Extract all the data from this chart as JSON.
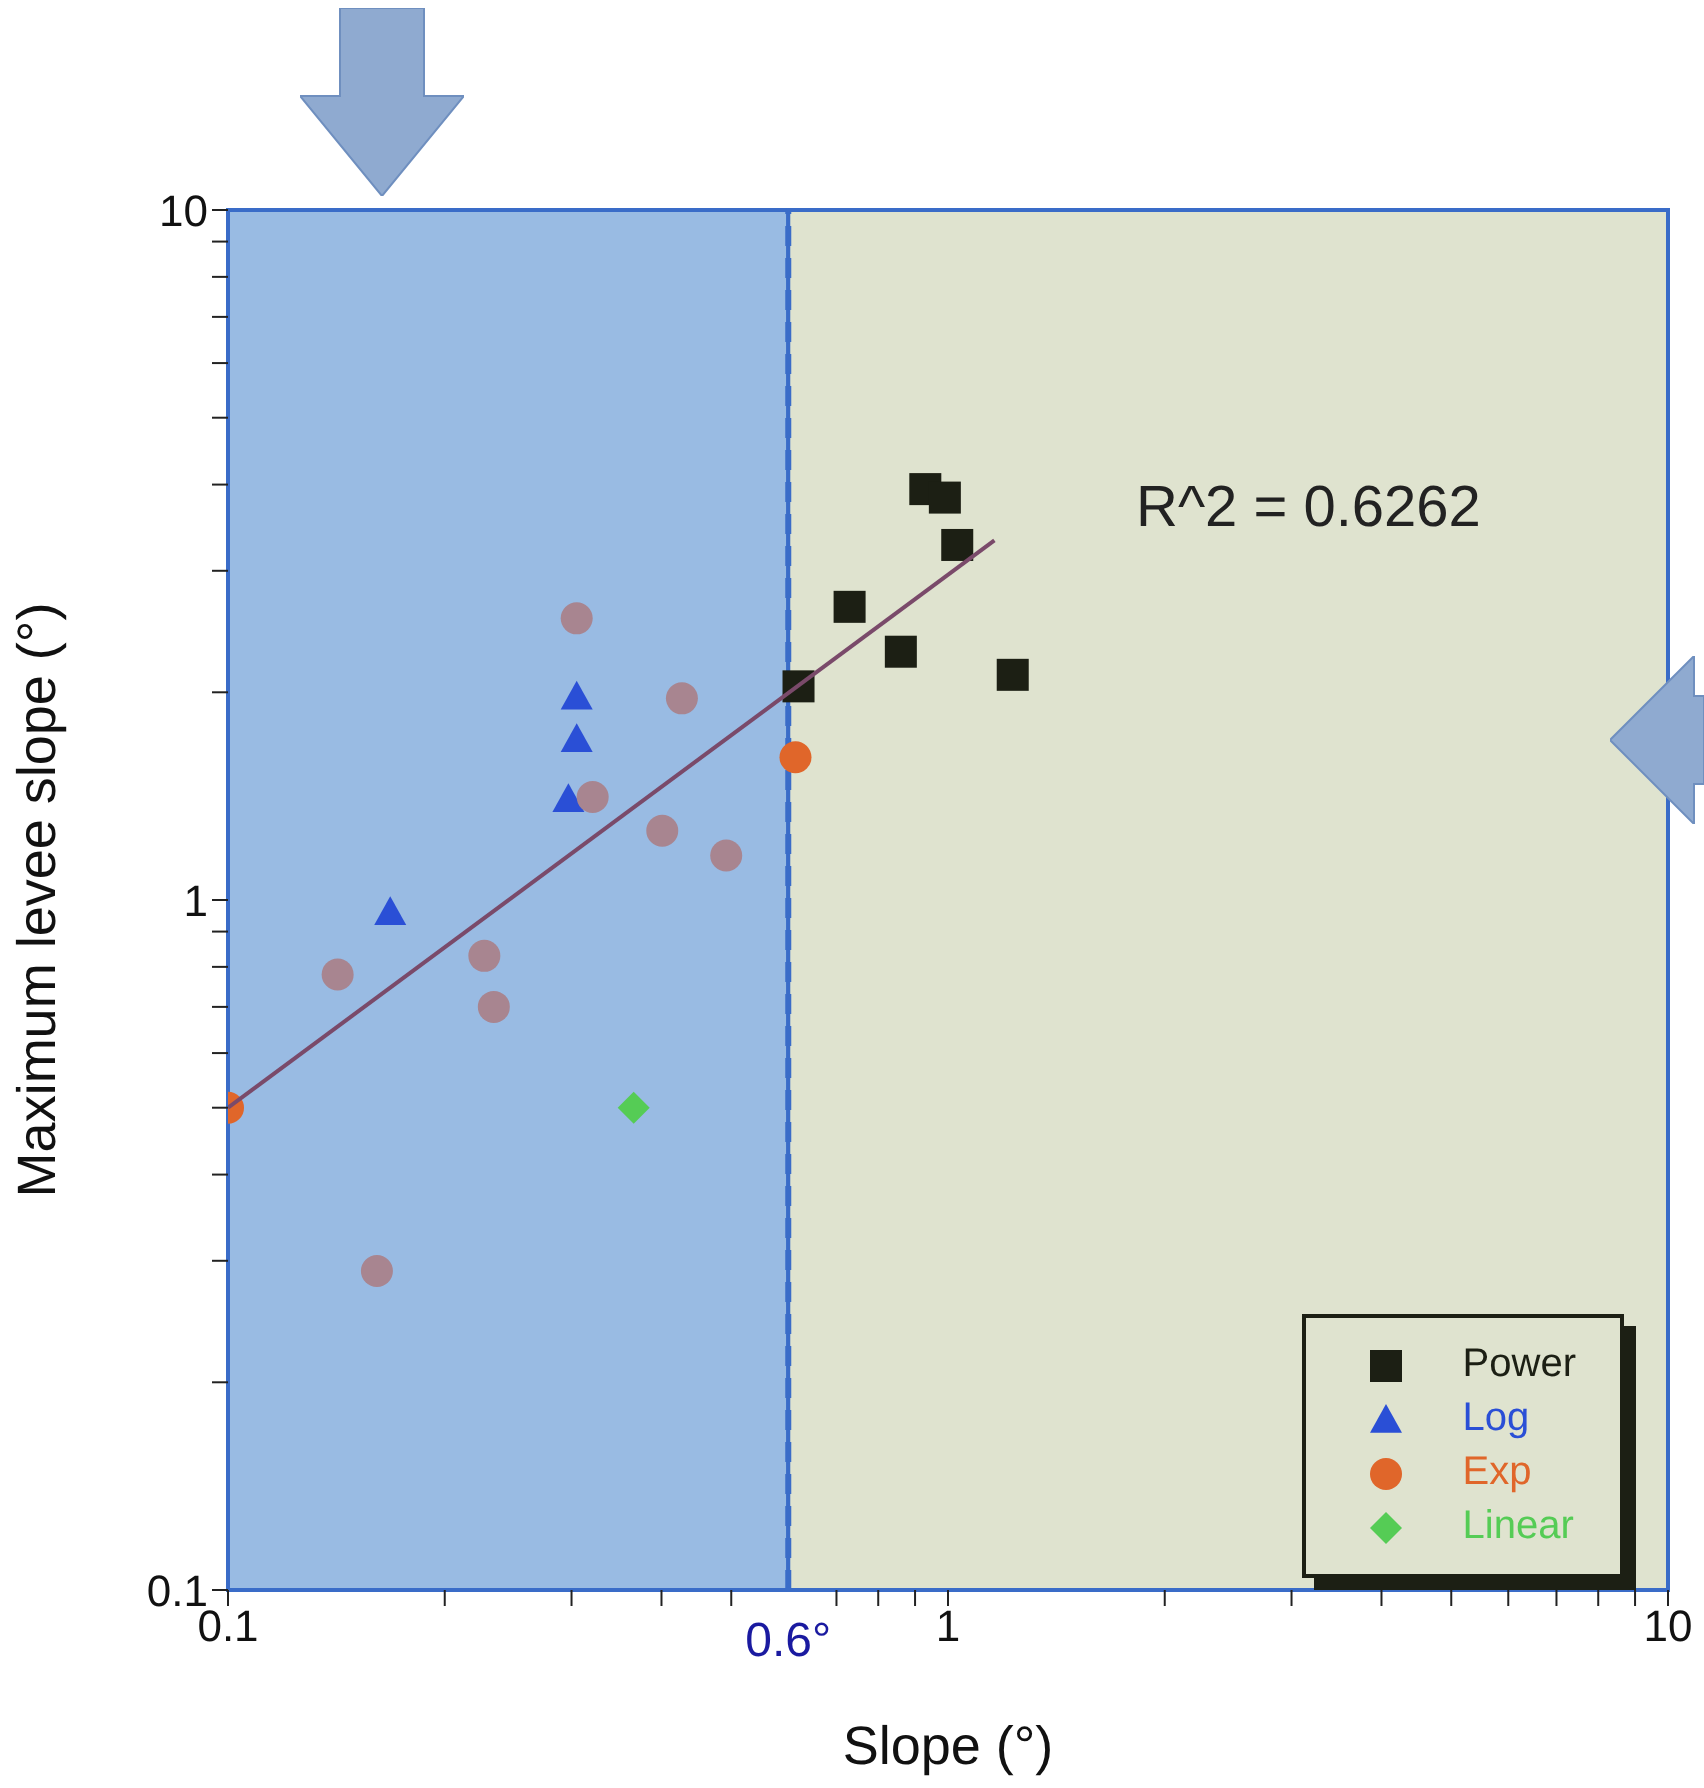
{
  "chart_data": {
    "type": "scatter",
    "xlabel": "Slope (°)",
    "ylabel": "Maximum levee slope (°)",
    "log": "xy",
    "xlim": [
      0.1,
      10
    ],
    "ylim": [
      0.1,
      10
    ],
    "xticks": [
      0.1,
      {
        "value": 0.2,
        "label": null
      },
      {
        "value": 0.3,
        "label": null
      },
      {
        "value": 0.4,
        "label": null
      },
      {
        "value": 0.5,
        "label": null
      },
      {
        "value": 0.7,
        "label": null
      },
      {
        "value": 0.8,
        "label": null
      },
      {
        "value": 0.9,
        "label": null
      },
      1,
      {
        "value": 2,
        "label": null
      },
      {
        "value": 3,
        "label": null
      },
      {
        "value": 4,
        "label": null
      },
      {
        "value": 5,
        "label": null
      },
      {
        "value": 6,
        "label": null
      },
      {
        "value": 7,
        "label": null
      },
      {
        "value": 8,
        "label": null
      },
      {
        "value": 9,
        "label": null
      },
      10
    ],
    "yticks": [
      0.1,
      {
        "value": 0.2,
        "label": null
      },
      {
        "value": 0.3,
        "label": null
      },
      {
        "value": 0.4,
        "label": null
      },
      {
        "value": 0.5,
        "label": null
      },
      {
        "value": 0.6,
        "label": null
      },
      {
        "value": 0.7,
        "label": null
      },
      {
        "value": 0.8,
        "label": null
      },
      {
        "value": 0.9,
        "label": null
      },
      1,
      {
        "value": 2,
        "label": null
      },
      {
        "value": 3,
        "label": null
      },
      {
        "value": 4,
        "label": null
      },
      {
        "value": 5,
        "label": null
      },
      {
        "value": 6,
        "label": null
      },
      {
        "value": 7,
        "label": null
      },
      {
        "value": 8,
        "label": null
      },
      {
        "value": 9,
        "label": null
      },
      10
    ],
    "legend": "bottom right",
    "bands": [
      {
        "axis": "x",
        "from": 0.1,
        "to": 0.6,
        "color": "#99bbe3"
      },
      {
        "axis": "x",
        "from": 0.6,
        "to": 10,
        "color": "#dfe3cf"
      }
    ],
    "ref_lines": [
      {
        "axis": "x",
        "value": 0.6,
        "label": "0.6°",
        "color": "#3a6cc8",
        "line_style": "dashed"
      }
    ],
    "annotations": [
      "R^2 = 0.6262"
    ],
    "series": [
      {
        "name": "Power",
        "color": "#1c1f14",
        "marker": "square",
        "x": [
          0.62,
          0.73,
          0.86,
          0.93,
          0.99,
          1.03,
          1.23
        ],
        "values": [
          2.04,
          2.66,
          2.29,
          3.94,
          3.83,
          3.27,
          2.12
        ]
      },
      {
        "name": "Log",
        "color": "#2a4fd6",
        "marker": "triangle",
        "x": [
          0.305,
          0.305,
          0.297,
          0.168
        ],
        "values": [
          1.97,
          1.71,
          1.4,
          0.96
        ]
      },
      {
        "name": "Exp",
        "color": "#e0662a",
        "marker": "circle",
        "x": [
          0.1,
          0.614
        ],
        "values": [
          0.5,
          1.61
        ]
      },
      {
        "name": "Linear",
        "color": "#55cc55",
        "marker": "diamond",
        "x": [
          0.366
        ],
        "values": [
          0.5
        ]
      },
      {
        "color": "#a88590",
        "marker": "circle",
        "x": [
          0.305,
          0.427,
          0.321,
          0.401,
          0.492,
          0.227,
          0.234,
          0.142,
          0.161
        ],
        "values": [
          2.56,
          1.96,
          1.41,
          1.26,
          1.16,
          0.83,
          0.7,
          0.78,
          0.29
        ]
      },
      {
        "type": "line",
        "color": "#7a4a6a",
        "marker": "none",
        "x": [
          0.1,
          1.16
        ],
        "values": [
          0.5,
          3.32
        ]
      }
    ]
  }
}
